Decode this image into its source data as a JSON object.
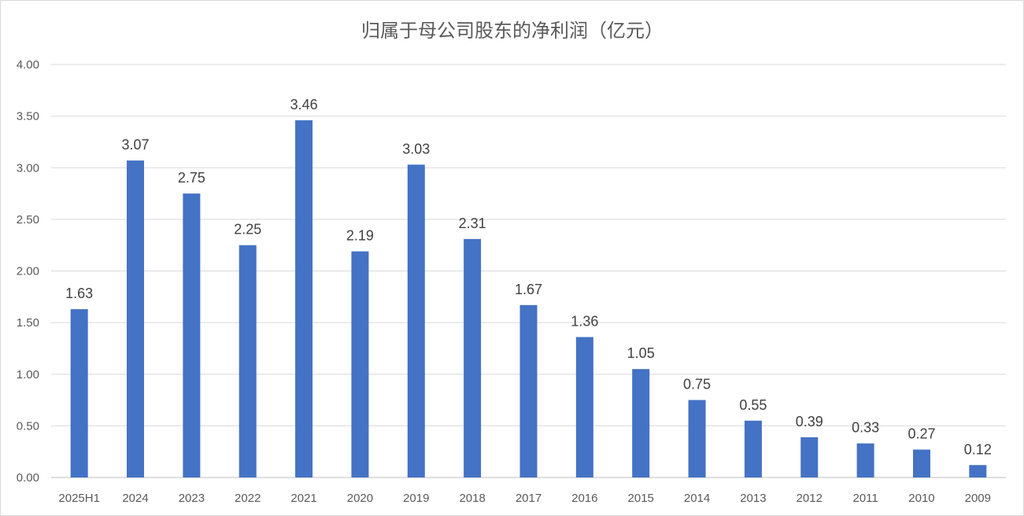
{
  "chart_data": {
    "type": "bar",
    "title": "归属于母公司股东的净利润（亿元）",
    "categories": [
      "2025H1",
      "2024",
      "2023",
      "2022",
      "2021",
      "2020",
      "2019",
      "2018",
      "2017",
      "2016",
      "2015",
      "2014",
      "2013",
      "2012",
      "2011",
      "2010",
      "2009"
    ],
    "series": [
      {
        "values": [
          1.63,
          3.07,
          2.75,
          2.25,
          3.46,
          2.19,
          3.03,
          2.31,
          1.67,
          1.36,
          1.05,
          0.75,
          0.55,
          0.39,
          0.33,
          0.27,
          0.12
        ],
        "color": "#4472c4"
      }
    ],
    "data_labels": [
      "1.63",
      "3.07",
      "2.75",
      "2.25",
      "3.46",
      "2.19",
      "3.03",
      "2.31",
      "1.67",
      "1.36",
      "1.05",
      "0.75",
      "0.55",
      "0.39",
      "0.33",
      "0.27",
      "0.12"
    ],
    "y_ticks": [
      "0.00",
      "0.50",
      "1.00",
      "1.50",
      "2.00",
      "2.50",
      "3.00",
      "3.50",
      "4.00"
    ],
    "ylim": [
      0,
      4
    ],
    "grid": true,
    "legend": "none",
    "gridline_color": "#d9d9d9",
    "text_color": "#595959"
  }
}
